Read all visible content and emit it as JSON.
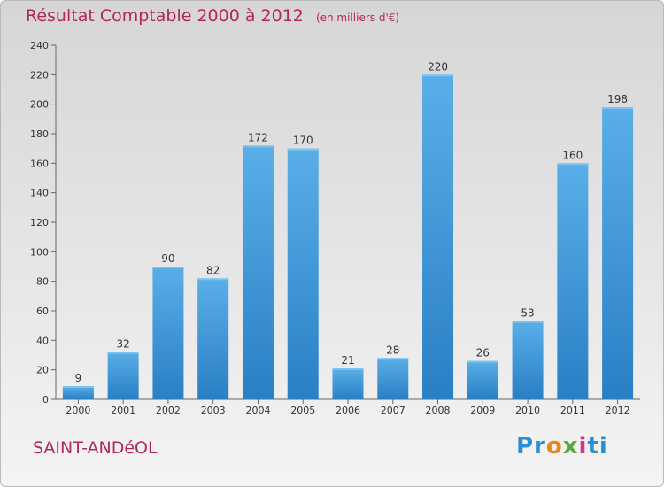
{
  "chart_data": {
    "type": "bar",
    "title": "Résultat Comptable 2000 à 2012",
    "subtitle": "(en milliers d'€)",
    "categories": [
      "2000",
      "2001",
      "2002",
      "2003",
      "2004",
      "2005",
      "2006",
      "2007",
      "2008",
      "2009",
      "2010",
      "2011",
      "2012"
    ],
    "values": [
      9,
      32,
      90,
      82,
      172,
      170,
      21,
      28,
      220,
      26,
      53,
      160,
      198
    ],
    "ylim": [
      0,
      240
    ],
    "yticks": [
      0,
      20,
      40,
      60,
      80,
      100,
      120,
      140,
      160,
      180,
      200,
      220,
      240
    ],
    "xlabel": "",
    "ylabel": "",
    "bar_color_top": "#5aaee8",
    "bar_color_bottom": "#2a7fc4"
  },
  "commune": "SAINT-ANDéOL",
  "logo": {
    "parts": [
      "Pr",
      "o",
      "x",
      "i",
      "ti"
    ],
    "colors": [
      "#2b8fd6",
      "#e8871e",
      "#56a93a",
      "#d9328a",
      "#2b8fd6"
    ]
  },
  "colors": {
    "accent": "#b5275a"
  }
}
